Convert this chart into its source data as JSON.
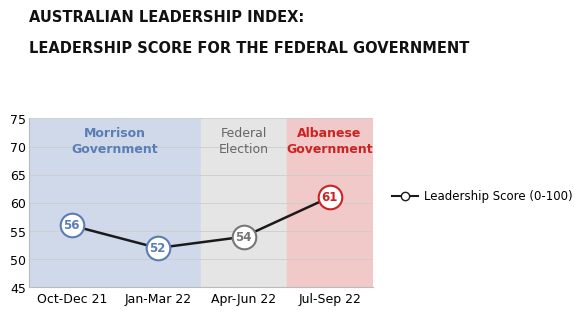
{
  "title_line1": "AUSTRALIAN LEADERSHIP INDEX:",
  "title_line2": "LEADERSHIP SCORE FOR THE FEDERAL GOVERNMENT",
  "x_labels": [
    "Oct-Dec 21",
    "Jan-Mar 22",
    "Apr-Jun 22",
    "Jul-Sep 22"
  ],
  "x_values": [
    0,
    1,
    2,
    3
  ],
  "y_values": [
    56,
    52,
    54,
    61
  ],
  "ylim": [
    45,
    75
  ],
  "yticks": [
    45,
    50,
    55,
    60,
    65,
    70,
    75
  ],
  "bg_morrison_color": "#cfd9ea",
  "bg_election_color": "#e5e5e5",
  "bg_albanese_color": "#f2c9c9",
  "morrison_label": "Morrison\nGovernment",
  "morrison_label_color": "#5b7db5",
  "election_label": "Federal\nElection",
  "election_label_color": "#666666",
  "albanese_label": "Albanese\nGovernment",
  "albanese_label_color": "#cc2222",
  "point_colors": [
    "#5b7db5",
    "#5b7db5",
    "#777777",
    "#cc2222"
  ],
  "line_color": "#1a1a1a",
  "legend_label": "Leadership Score (0-100)",
  "title_fontsize": 10.5,
  "tick_fontsize": 9,
  "region_label_fontsize": 9
}
